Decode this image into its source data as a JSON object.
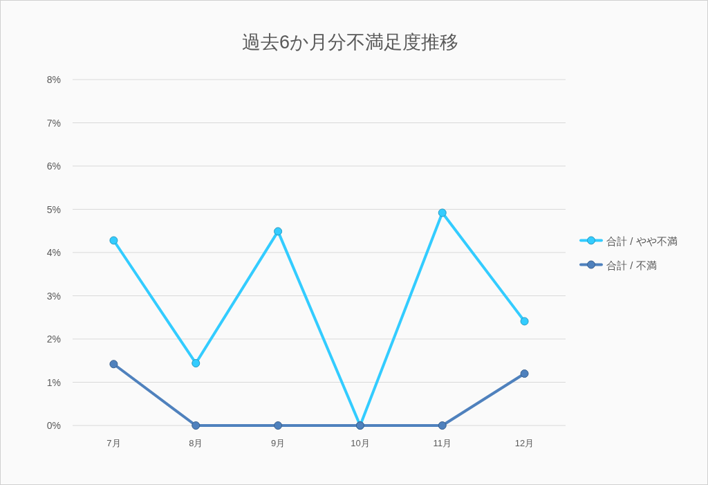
{
  "chart_data": {
    "type": "line",
    "title": "過去6か月分不満足度推移",
    "categories": [
      "7月",
      "8月",
      "9月",
      "10月",
      "11月",
      "12月"
    ],
    "series": [
      {
        "name": "合計 / やや不満",
        "color": "#33ccff",
        "values": [
          4.28,
          1.44,
          4.49,
          0,
          4.92,
          2.41
        ]
      },
      {
        "name": "合計 / 不満",
        "color": "#4f81bd",
        "values": [
          1.42,
          0,
          0,
          0,
          0,
          1.2
        ]
      }
    ],
    "ylim": [
      0,
      8
    ],
    "yticks": [
      {
        "value": 0,
        "label": "0%"
      },
      {
        "value": 1,
        "label": "1%"
      },
      {
        "value": 2,
        "label": "2%"
      },
      {
        "value": 3,
        "label": "3%"
      },
      {
        "value": 4,
        "label": "4%"
      },
      {
        "value": 5,
        "label": "5%"
      },
      {
        "value": 6,
        "label": "6%"
      },
      {
        "value": 7,
        "label": "7%"
      },
      {
        "value": 8,
        "label": "8%"
      }
    ],
    "grid": "y",
    "legend": "right",
    "marker": "circle",
    "line_style": "solid"
  }
}
